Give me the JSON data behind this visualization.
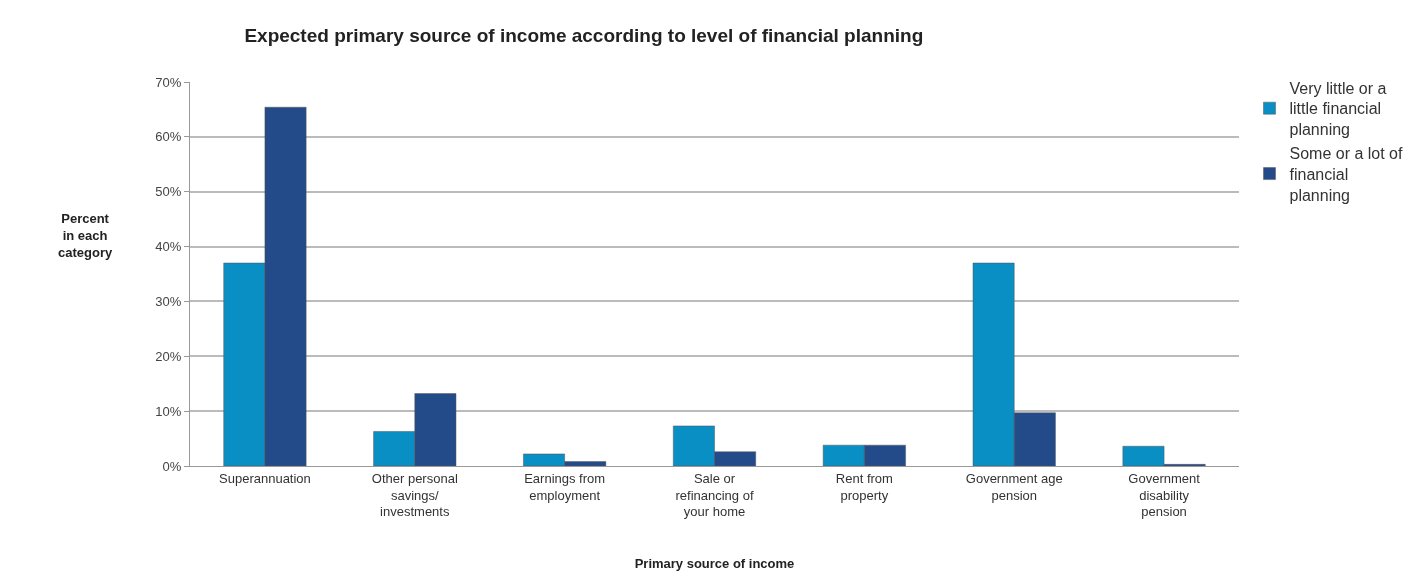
{
  "chart_data": {
    "type": "bar",
    "title": "Expected primary source of income according to level of financial planning",
    "xlabel": "Primary source of income",
    "ylabel": "Percent in each category",
    "categories": [
      "Superannuation",
      "Other personal savings/ investments",
      "Earnings from employment",
      "Sale or refinancing of your home",
      "Rent from property",
      "Government age pension",
      "Government disability pension"
    ],
    "series": [
      {
        "name": "Very little or a little financial planning",
        "color": "#0a8fc4",
        "values": [
          37,
          6.3,
          2.2,
          7.3,
          3.8,
          37,
          3.6
        ]
      },
      {
        "name": "Some or a lot of financial planning",
        "color": "#234b8a",
        "values": [
          65.4,
          13.2,
          0.8,
          2.6,
          3.8,
          9.7,
          0.3
        ]
      }
    ],
    "ylim": [
      0,
      70
    ],
    "yticks": [
      {
        "value": 0,
        "label": "0%"
      },
      {
        "value": 10,
        "label": "10%"
      },
      {
        "value": 20,
        "label": "20%"
      },
      {
        "value": 30,
        "label": "30%"
      },
      {
        "value": 40,
        "label": "40%"
      },
      {
        "value": 50,
        "label": "50%"
      },
      {
        "value": 60,
        "label": "60%"
      },
      {
        "value": 70,
        "label": "70%"
      }
    ],
    "grid": "y",
    "legend": "top right"
  }
}
